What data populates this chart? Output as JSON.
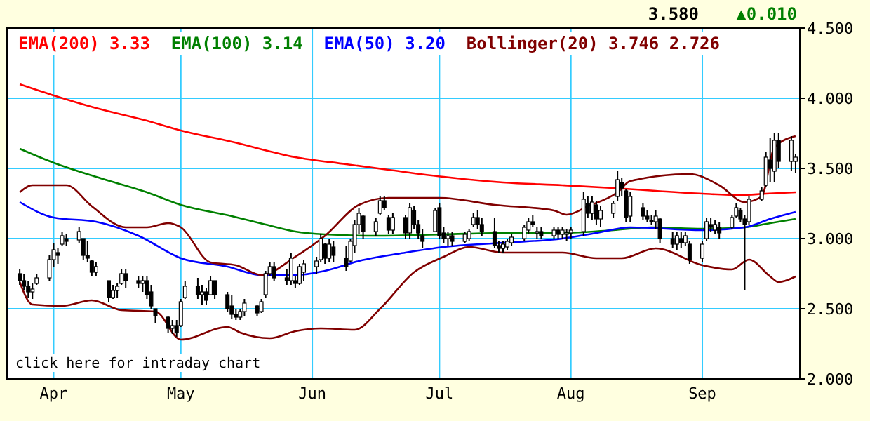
{
  "chart_data": {
    "type": "candlestick",
    "annotations": [
      "3.580",
      "▲0.010",
      "click here for intraday chart"
    ],
    "x": [
      "--03-24",
      "--03-25",
      "--03-26",
      "--03-27",
      "--03-28",
      "--03-31",
      "--04-01",
      "--04-02",
      "--04-03",
      "--04-04",
      "--04-07",
      "--04-08",
      "--04-09",
      "--04-10",
      "--04-11",
      "--04-14",
      "--04-15",
      "--04-16",
      "--04-17",
      "--04-18",
      "--04-21",
      "--04-22",
      "--04-23",
      "--04-24",
      "--04-25",
      "--04-28",
      "--04-29",
      "--04-30",
      "--05-01",
      "--05-02",
      "--05-05",
      "--05-06",
      "--05-07",
      "--05-08",
      "--05-09",
      "--05-12",
      "--05-13",
      "--05-14",
      "--05-15",
      "--05-16",
      "--05-19",
      "--05-20",
      "--05-21",
      "--05-22",
      "--05-23",
      "--05-26",
      "--05-27",
      "--05-28",
      "--05-29",
      "--05-30",
      "--06-02",
      "--06-03",
      "--06-04",
      "--06-05",
      "--06-06",
      "--06-09",
      "--06-10",
      "--06-11",
      "--06-12",
      "--06-13",
      "--06-16",
      "--06-17",
      "--06-18",
      "--06-19",
      "--06-20",
      "--06-23",
      "--06-24",
      "--06-25",
      "--06-26",
      "--06-27",
      "--06-30",
      "--07-01",
      "--07-02",
      "--07-03",
      "--07-04",
      "--07-07",
      "--07-08",
      "--07-09",
      "--07-10",
      "--07-11",
      "--07-14",
      "--07-15",
      "--07-16",
      "--07-17",
      "--07-18",
      "--07-21",
      "--07-22",
      "--07-23",
      "--07-24",
      "--07-25",
      "--07-28",
      "--07-29",
      "--07-30",
      "--07-31",
      "--08-01",
      "--08-04",
      "--08-05",
      "--08-06",
      "--08-07",
      "--08-08",
      "--08-11",
      "--08-12",
      "--08-13",
      "--08-14",
      "--08-15",
      "--08-18",
      "--08-19",
      "--08-20",
      "--08-21",
      "--08-22",
      "--08-25",
      "--08-26",
      "--08-27",
      "--08-28",
      "--08-29",
      "--09-01",
      "--09-02",
      "--09-03",
      "--09-04",
      "--09-05",
      "--09-08",
      "--09-09",
      "--09-10",
      "--09-11",
      "--09-12",
      "--09-15",
      "--09-16",
      "--09-17",
      "--09-18",
      "--09-19",
      "--09-22",
      "--09-23"
    ],
    "xlim": [
      "--03-21",
      "--09-24"
    ],
    "xticks": [
      {
        "value": "--04-01",
        "label": "Apr"
      },
      {
        "value": "--05-01",
        "label": "May"
      },
      {
        "value": "--06-01",
        "label": "Jun"
      },
      {
        "value": "--07-01",
        "label": "Jul"
      },
      {
        "value": "--08-01",
        "label": "Aug"
      },
      {
        "value": "--09-01",
        "label": "Sep"
      }
    ],
    "ohlc": [
      [
        2.75,
        2.78,
        2.67,
        2.7
      ],
      [
        2.7,
        2.75,
        2.63,
        2.66
      ],
      [
        2.66,
        2.7,
        2.58,
        2.62
      ],
      [
        2.62,
        2.68,
        2.57,
        2.64
      ],
      [
        2.68,
        2.75,
        2.67,
        2.72
      ],
      [
        2.72,
        2.88,
        2.7,
        2.85
      ],
      [
        2.85,
        2.97,
        2.8,
        2.92
      ],
      [
        2.9,
        2.93,
        2.82,
        2.88
      ],
      [
        2.96,
        3.05,
        2.95,
        3.02
      ],
      [
        3.0,
        3.03,
        2.95,
        2.98
      ],
      [
        2.99,
        3.08,
        2.97,
        3.05
      ],
      [
        3.0,
        3.0,
        2.85,
        2.88
      ],
      [
        2.88,
        2.98,
        2.83,
        2.86
      ],
      [
        2.84,
        2.85,
        2.73,
        2.76
      ],
      [
        2.76,
        2.83,
        2.73,
        2.8
      ],
      [
        2.7,
        2.7,
        2.55,
        2.58
      ],
      [
        2.58,
        2.67,
        2.57,
        2.63
      ],
      [
        2.63,
        2.68,
        2.58,
        2.66
      ],
      [
        2.68,
        2.78,
        2.67,
        2.75
      ],
      [
        2.75,
        2.78,
        2.65,
        2.7
      ],
      [
        2.7,
        2.73,
        2.65,
        2.68
      ],
      [
        2.68,
        2.73,
        2.62,
        2.7
      ],
      [
        2.7,
        2.73,
        2.57,
        2.6
      ],
      [
        2.62,
        2.67,
        2.5,
        2.52
      ],
      [
        2.5,
        2.5,
        2.4,
        2.45
      ],
      [
        2.44,
        2.45,
        2.33,
        2.36
      ],
      [
        2.36,
        2.42,
        2.32,
        2.38
      ],
      [
        2.38,
        2.42,
        2.3,
        2.33
      ],
      [
        2.38,
        2.57,
        2.37,
        2.55
      ],
      [
        2.58,
        2.7,
        2.57,
        2.66
      ],
      [
        2.66,
        2.72,
        2.57,
        2.6
      ],
      [
        2.6,
        2.67,
        2.53,
        2.62
      ],
      [
        2.62,
        2.65,
        2.53,
        2.56
      ],
      [
        2.6,
        2.73,
        2.6,
        2.7
      ],
      [
        2.7,
        2.7,
        2.57,
        2.6
      ],
      [
        2.6,
        2.62,
        2.48,
        2.5
      ],
      [
        2.52,
        2.6,
        2.43,
        2.46
      ],
      [
        2.46,
        2.5,
        2.42,
        2.44
      ],
      [
        2.44,
        2.5,
        2.42,
        2.48
      ],
      [
        2.48,
        2.57,
        2.45,
        2.54
      ],
      [
        2.52,
        2.53,
        2.45,
        2.47
      ],
      [
        2.48,
        2.57,
        2.47,
        2.55
      ],
      [
        2.6,
        2.77,
        2.58,
        2.75
      ],
      [
        2.75,
        2.83,
        2.73,
        2.8
      ],
      [
        2.8,
        2.83,
        2.7,
        2.72
      ],
      [
        2.72,
        2.78,
        2.67,
        2.7
      ],
      [
        2.7,
        2.9,
        2.67,
        2.86
      ],
      [
        2.7,
        2.73,
        2.65,
        2.68
      ],
      [
        2.68,
        2.82,
        2.67,
        2.8
      ],
      [
        2.76,
        2.85,
        2.7,
        2.82
      ],
      [
        2.8,
        2.87,
        2.75,
        2.84
      ],
      [
        2.85,
        3.03,
        2.83,
        3.0
      ],
      [
        2.96,
        2.97,
        2.82,
        2.86
      ],
      [
        2.86,
        3.0,
        2.83,
        2.96
      ],
      [
        2.94,
        2.98,
        2.83,
        2.88
      ],
      [
        2.86,
        2.95,
        2.77,
        2.8
      ],
      [
        2.84,
        3.0,
        2.83,
        2.98
      ],
      [
        2.95,
        3.13,
        2.9,
        3.1
      ],
      [
        3.1,
        3.22,
        3.03,
        3.18
      ],
      [
        3.16,
        3.17,
        3.0,
        3.05
      ],
      [
        3.05,
        3.15,
        3.02,
        3.12
      ],
      [
        3.18,
        3.3,
        3.17,
        3.27
      ],
      [
        3.27,
        3.3,
        3.2,
        3.22
      ],
      [
        3.15,
        3.17,
        3.03,
        3.06
      ],
      [
        3.06,
        3.18,
        3.03,
        3.15
      ],
      [
        3.15,
        3.17,
        3.0,
        3.04
      ],
      [
        3.04,
        3.25,
        3.0,
        3.22
      ],
      [
        3.2,
        3.23,
        3.07,
        3.1
      ],
      [
        3.1,
        3.13,
        3.0,
        3.04
      ],
      [
        3.02,
        3.07,
        2.93,
        2.98
      ],
      [
        3.05,
        3.22,
        3.05,
        3.2
      ],
      [
        3.22,
        3.25,
        3.0,
        3.02
      ],
      [
        3.04,
        3.08,
        2.97,
        3.0
      ],
      [
        3.0,
        3.05,
        2.95,
        3.02
      ],
      [
        3.02,
        3.05,
        2.95,
        2.98
      ],
      [
        2.98,
        3.05,
        2.97,
        3.03
      ],
      [
        3.0,
        3.07,
        2.98,
        3.05
      ],
      [
        3.1,
        3.18,
        3.08,
        3.15
      ],
      [
        3.15,
        3.2,
        3.07,
        3.1
      ],
      [
        3.1,
        3.15,
        3.02,
        3.05
      ],
      [
        3.05,
        3.15,
        2.93,
        2.95
      ],
      [
        2.95,
        2.98,
        2.9,
        2.93
      ],
      [
        2.93,
        2.98,
        2.9,
        2.96
      ],
      [
        2.94,
        3.0,
        2.92,
        2.98
      ],
      [
        2.97,
        3.03,
        2.95,
        3.01
      ],
      [
        3.0,
        3.1,
        2.98,
        3.08
      ],
      [
        3.06,
        3.15,
        3.03,
        3.12
      ],
      [
        3.12,
        3.17,
        3.08,
        3.1
      ],
      [
        3.04,
        3.08,
        3.0,
        3.05
      ],
      [
        3.05,
        3.08,
        3.0,
        3.02
      ],
      [
        3.02,
        3.08,
        3.0,
        3.06
      ],
      [
        3.06,
        3.08,
        3.0,
        3.03
      ],
      [
        3.03,
        3.08,
        3.0,
        3.06
      ],
      [
        3.03,
        3.07,
        2.98,
        3.04
      ],
      [
        3.04,
        3.08,
        3.0,
        3.06
      ],
      [
        3.05,
        3.33,
        3.02,
        3.28
      ],
      [
        3.25,
        3.3,
        3.15,
        3.18
      ],
      [
        3.18,
        3.3,
        3.13,
        3.26
      ],
      [
        3.24,
        3.27,
        3.1,
        3.14
      ],
      [
        3.14,
        3.23,
        3.08,
        3.2
      ],
      [
        3.18,
        3.27,
        3.15,
        3.25
      ],
      [
        3.3,
        3.48,
        3.27,
        3.42
      ],
      [
        3.4,
        3.43,
        3.3,
        3.36
      ],
      [
        3.34,
        3.35,
        3.12,
        3.15
      ],
      [
        3.16,
        3.33,
        3.12,
        3.3
      ],
      [
        3.22,
        3.25,
        3.13,
        3.16
      ],
      [
        3.16,
        3.2,
        3.12,
        3.14
      ],
      [
        3.13,
        3.17,
        3.1,
        3.12
      ],
      [
        3.12,
        3.2,
        3.07,
        3.16
      ],
      [
        3.14,
        3.15,
        2.97,
        3.0
      ],
      [
        3.0,
        3.05,
        2.93,
        2.96
      ],
      [
        2.96,
        3.05,
        2.92,
        3.02
      ],
      [
        3.0,
        3.05,
        2.93,
        2.97
      ],
      [
        2.97,
        3.05,
        2.95,
        3.02
      ],
      [
        2.96,
        2.98,
        2.82,
        2.85
      ],
      [
        2.86,
        2.98,
        2.83,
        2.96
      ],
      [
        3.0,
        3.15,
        2.98,
        3.12
      ],
      [
        3.1,
        3.15,
        3.05,
        3.08
      ],
      [
        3.06,
        3.13,
        3.03,
        3.1
      ],
      [
        3.08,
        3.12,
        3.0,
        3.04
      ],
      [
        3.08,
        3.17,
        3.07,
        3.15
      ],
      [
        3.16,
        3.25,
        3.15,
        3.22
      ],
      [
        3.2,
        3.22,
        3.12,
        3.14
      ],
      [
        3.14,
        3.17,
        2.63,
        3.1
      ],
      [
        3.12,
        3.3,
        3.1,
        3.28
      ],
      [
        3.28,
        3.37,
        3.27,
        3.34
      ],
      [
        3.38,
        3.62,
        3.37,
        3.58
      ],
      [
        3.56,
        3.72,
        3.4,
        3.5
      ],
      [
        3.48,
        3.75,
        3.4,
        3.7
      ],
      [
        3.7,
        3.75,
        3.5,
        3.55
      ],
      [
        3.55,
        3.73,
        3.48,
        3.7
      ],
      [
        3.55,
        3.6,
        3.47,
        3.58
      ]
    ],
    "series": [
      {
        "type": "line",
        "name": "EMA(200) 3.33",
        "color": "#ff0000",
        "x": [
          "--03-24",
          "--04-01",
          "--04-11",
          "--04-23",
          "--05-01",
          "--05-13",
          "--05-28",
          "--06-09",
          "--06-19",
          "--07-02",
          "--07-16",
          "--07-30",
          "--08-11",
          "--08-21",
          "--09-01",
          "--09-10",
          "--09-16",
          "--09-23"
        ],
        "values": [
          4.1,
          4.02,
          3.93,
          3.84,
          3.77,
          3.69,
          3.58,
          3.53,
          3.49,
          3.44,
          3.4,
          3.38,
          3.36,
          3.34,
          3.32,
          3.31,
          3.32,
          3.33
        ]
      },
      {
        "type": "line",
        "name": "EMA(100) 3.14",
        "color": "#008000",
        "x": [
          "--03-24",
          "--04-01",
          "--04-11",
          "--04-23",
          "--05-01",
          "--05-13",
          "--05-21",
          "--05-28",
          "--06-04",
          "--06-16",
          "--07-02",
          "--07-16",
          "--07-30",
          "--08-11",
          "--08-20",
          "--09-01",
          "--09-11",
          "--09-17",
          "--09-23"
        ],
        "values": [
          3.64,
          3.54,
          3.44,
          3.33,
          3.24,
          3.16,
          3.1,
          3.05,
          3.03,
          3.02,
          3.03,
          3.04,
          3.04,
          3.06,
          3.08,
          3.07,
          3.08,
          3.11,
          3.14
        ]
      },
      {
        "type": "line",
        "name": "EMA(50) 3.20",
        "color": "#0000ff",
        "x": [
          "--03-24",
          "--04-01",
          "--04-11",
          "--04-21",
          "--05-01",
          "--05-12",
          "--05-20",
          "--05-28",
          "--06-04",
          "--06-12",
          "--06-23",
          "--07-02",
          "--07-16",
          "--07-30",
          "--08-07",
          "--08-15",
          "--09-01",
          "--09-11",
          "--09-17",
          "--09-23"
        ],
        "values": [
          3.26,
          3.15,
          3.12,
          3.02,
          2.86,
          2.8,
          2.74,
          2.74,
          2.77,
          2.84,
          2.9,
          2.94,
          2.97,
          3.0,
          3.04,
          3.08,
          3.06,
          3.08,
          3.14,
          3.19
        ]
      },
      {
        "type": "line",
        "name": "Bollinger(20) 3.746 2.726",
        "color": "#800000",
        "x": [
          "--03-24",
          "--03-27",
          "--04-04",
          "--04-10",
          "--04-18",
          "--04-23",
          "--04-28",
          "--05-01",
          "--05-08",
          "--05-14",
          "--05-20",
          "--05-28",
          "--06-04",
          "--06-12",
          "--06-19",
          "--07-01",
          "--07-14",
          "--07-28",
          "--07-31",
          "--08-05",
          "--08-12",
          "--08-15",
          "--08-29",
          "--09-05",
          "--09-11",
          "--09-15",
          "--09-18",
          "--09-23"
        ],
        "values": [
          3.33,
          3.38,
          3.38,
          3.23,
          3.08,
          3.08,
          3.11,
          3.08,
          2.83,
          2.81,
          2.74,
          2.87,
          3.02,
          3.24,
          3.29,
          3.29,
          3.24,
          3.2,
          3.17,
          3.23,
          3.33,
          3.41,
          3.46,
          3.38,
          3.26,
          3.3,
          3.65,
          3.73
        ]
      },
      {
        "type": "line",
        "color": "#800000",
        "x": [
          "--03-24",
          "--03-27",
          "--04-03",
          "--04-10",
          "--04-17",
          "--04-25",
          "--05-01",
          "--05-12",
          "--05-15",
          "--05-22",
          "--05-28",
          "--06-03",
          "--06-11",
          "--06-17",
          "--06-25",
          "--07-02",
          "--07-08",
          "--07-16",
          "--07-30",
          "--08-07",
          "--08-13",
          "--08-21",
          "--09-01",
          "--09-08",
          "--09-12",
          "--09-17",
          "--09-19",
          "--09-23"
        ],
        "values": [
          2.69,
          2.53,
          2.52,
          2.56,
          2.49,
          2.48,
          2.28,
          2.37,
          2.33,
          2.29,
          2.34,
          2.36,
          2.35,
          2.5,
          2.76,
          2.87,
          2.94,
          2.9,
          2.9,
          2.86,
          2.86,
          2.93,
          2.81,
          2.78,
          2.85,
          2.73,
          2.69,
          2.73
        ]
      }
    ],
    "ylim": [
      2,
      4.5
    ],
    "yticks": [
      {
        "value": 2,
        "label": "2.000"
      },
      {
        "value": 2.5,
        "label": "2.500"
      },
      {
        "value": 3,
        "label": "3.000"
      },
      {
        "value": 3.5,
        "label": "3.500"
      },
      {
        "value": 4,
        "label": "4.000"
      },
      {
        "value": 4.5,
        "label": "4.500"
      }
    ],
    "grid": true,
    "legend": "top left"
  }
}
